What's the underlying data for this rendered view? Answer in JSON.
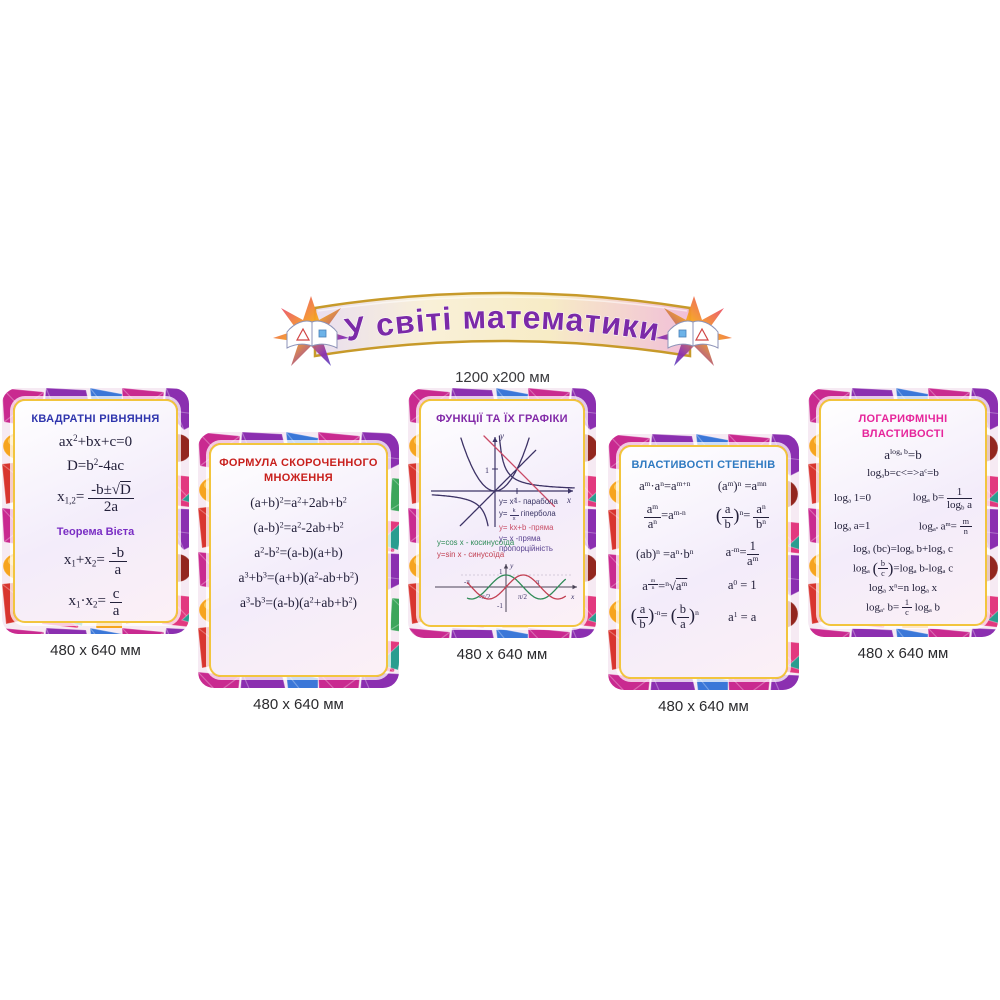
{
  "banner": {
    "title": "У світі математики",
    "title_color": "#7b2aa8",
    "size_label": "1200 х200 мм"
  },
  "posters": [
    {
      "title": "КВАДРАТНІ РІВНЯННЯ",
      "title_color": "#2f35ad",
      "size_label": "480 х 640 мм",
      "formulas": [
        "ax<sup>2</sup>+bx+c=0",
        "D=b<sup>2</sup>-4ac",
        "x<sub>1,2</sub>= <span class='frac'><i>-b±√<u>D</u></i><b>2a</b></span>"
      ],
      "subtitle": "Теорема Вієта",
      "subtitle_color": "#7a2ec4",
      "vieta": [
        "x<sub>1</sub>+x<sub>2</sub>= <span class='frac'><i>-b</i><b>a</b></span>",
        "x<sub>1</sub>·x<sub>2</sub>= <span class='frac'><i>c</i><b>a</b></span>"
      ]
    },
    {
      "title": "ФОРМУЛА СКОРОЧЕННОГО МНОЖЕННЯ",
      "title_color": "#c8201d",
      "size_label": "480 х 640 мм",
      "formulas": [
        "(a+b)<sup>2</sup>=a<sup>2</sup>+2ab+b<sup>2</sup>",
        "(a-b)<sup>2</sup>=a<sup>2</sup>-2ab+b<sup>2</sup>",
        "a<sup>2</sup>-b<sup>2</sup>=(a-b)(a+b)",
        "a<sup>3</sup>+b<sup>3</sup>=(a+b)(a<sup>2</sup>-ab+b<sup>2</sup>)",
        "a<sup>3</sup>-b<sup>3</sup>=(a-b)(a<sup>2</sup>+ab+b<sup>2</sup>)"
      ]
    },
    {
      "title": "ФУНКЦІЇ ТА ЇХ ГРАФІКИ",
      "title_color": "#8229a8",
      "size_label": "480 х 640 мм",
      "legend": [
        {
          "text": "y= x<sup>2</sup> -  парабола",
          "color": "#3a3564"
        },
        {
          "text": "y= <span class='frac fs'><i>k</i><b>x</b></span>  гіпербола",
          "color": "#3a3564"
        },
        {
          "text": "y= kx+b -пряма",
          "color": "#c94f68"
        },
        {
          "text": "y= x -пряма<br>пропорційність",
          "color": "#5a4390"
        }
      ],
      "trig": [
        {
          "text": "y=cos x  -  косинусоїда",
          "color": "#2f8b57"
        },
        {
          "text": "y=sin x  -  синусоїда",
          "color": "#c24052"
        }
      ],
      "graph1": {
        "axis_labels": {
          "y": "y",
          "x": "x",
          "tick_y": "1",
          "tick_x": "1"
        },
        "curves": [
          {
            "fn": "parabola",
            "x0": -1.55,
            "x1": 1.55,
            "color": "#3d3366"
          },
          {
            "fn": "hyp",
            "x0": 0.2,
            "x1": 3.6,
            "color": "#3d3366"
          },
          {
            "fn": "hyp",
            "x0": -2.85,
            "x1": -0.28,
            "color": "#3d3366"
          },
          {
            "fn": "lin_id",
            "x0": -1.6,
            "x1": 1.85,
            "color": "#3d3366"
          },
          {
            "fn": "lin_neg",
            "x0": -0.5,
            "x1": 2.7,
            "color": "#c94a66"
          }
        ]
      },
      "graph2": {
        "axis_labels": {
          "y": "y",
          "x": "x",
          "one": "1",
          "minus_one": "-1",
          "neg_pi": "-π",
          "neg_half_pi": "-π/2",
          "half_pi": "π/2",
          "pi": "π"
        },
        "curves": [
          {
            "fn": "cos",
            "x0": -3.5,
            "x1": 5.4,
            "color": "#2f8b57"
          },
          {
            "fn": "sin",
            "x0": -3.5,
            "x1": 5.4,
            "color": "#c24052"
          }
        ]
      }
    },
    {
      "title": "ВЛАСТИВОСТІ СТЕПЕНІВ",
      "title_color": "#2f7ac1",
      "size_label": "480 х 640 мм",
      "left": [
        "a<sup>m</sup>·a<sup>n</sup>=a<sup>m+n</sup>",
        "<span class='frac'><i>a<sup>m</sup></i><b>a<sup>n</sup></b></span>=a<sup>m-n</sup>",
        "(ab)<sup>n</sup> =a<sup>n</sup>·b<sup>n</sup>",
        "a<sup><span class='frac fs'><i>m</i><b>n</b></span></sup>=<sup>n</sup>√<u>a<sup>m</sup></u>",
        "<span class='bp'>(</span><span class='frac'><i>a</i><b>b</b></span><span class='bp'>)</span><sup>-n</sup>= <span class='bp'>(</span><span class='frac'><i>b</i><b>a</b></span><span class='bp'>)</span><sup>n</sup>"
      ],
      "right": [
        "(a<sup>m</sup>)<sup>n</sup> =a<sup>mn</sup>",
        "<span class='bp'>(</span><span class='frac'><i>a</i><b>b</b></span><span class='bp'>)</span><sup>n</sup>= <span class='frac'><i>a<sup>n</sup></i><b>b<sup>n</sup></b></span>",
        "a<sup>-m</sup>=<span class='frac'><i>1</i><b>a<sup>m</sup></b></span>",
        "a<sup>0</sup> = 1",
        "a<sup>1</sup> = a"
      ]
    },
    {
      "title": "ЛОГАРИФМІЧНІ ВЛАСТИВОСТІ",
      "title_color": "#e6259b",
      "size_label": "480 х 640 мм",
      "top": [
        "a<sup>log<sub>a</sub> b</sup>=b",
        "log<sub>a</sub>b=c&lt;=&gt;a<sup>c</sup>=b"
      ],
      "pair_left": [
        "log<sub>a</sub> 1=0",
        "log<sub>a</sub> a=1"
      ],
      "pair_right": [
        "log<sub>a</sub> b= <span class='frac'><i>1</i><b>log<sub>b</sub> a</b></span>",
        "log<sub>a<sup>n</sup></sub> a<sup>m</sup>= <span class='frac fs'><i>m</i><b>n</b></span>"
      ],
      "lines": [
        "log<sub>a</sub> (bc)=log<sub>a</sub> b+log<sub>a</sub> c",
        "log<sub>a</sub> <span class='bp'>(</span><span class='frac fs'><i>b</i><b>c</b></span><span class='bp'>)</span>=log<sub>a</sub> b-log<sub>a</sub> c",
        "log<sub>a</sub> x<sup>n</sup>=n log<sub>a</sub> x",
        "log<sub>a<sup>c</sup></sub> b= <span class='frac fs'><i>1</i><b>c</b></span> log<sub>a</sub> b"
      ]
    }
  ]
}
